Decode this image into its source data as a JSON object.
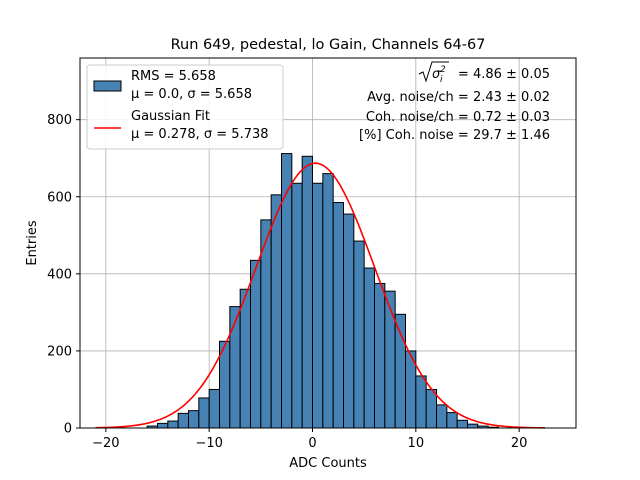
{
  "chart_data": {
    "type": "bar",
    "title": "Run 649, pedestal, lo Gain, Channels 64-67",
    "xlabel": "ADC Counts",
    "ylabel": "Entries",
    "xlim": [
      -22.5,
      25.5
    ],
    "ylim": [
      0,
      960
    ],
    "xticks": [
      -20,
      -10,
      0,
      10,
      20
    ],
    "xtick_labels": [
      "−20",
      "−10",
      "0",
      "10",
      "20"
    ],
    "yticks": [
      0,
      200,
      400,
      600,
      800
    ],
    "ytick_labels": [
      "0",
      "200",
      "400",
      "600",
      "800"
    ],
    "grid": true,
    "legend_position": "top-left",
    "histogram": {
      "bin_width": 1,
      "bin_left_edges": [
        -16,
        -15,
        -14,
        -13,
        -12,
        -11,
        -10,
        -9,
        -8,
        -7,
        -6,
        -5,
        -4,
        -3,
        -2,
        -1,
        0,
        1,
        2,
        3,
        4,
        5,
        6,
        7,
        8,
        9,
        10,
        11,
        12,
        13,
        14,
        15,
        16,
        17
      ],
      "values": [
        5,
        12,
        18,
        38,
        45,
        78,
        100,
        225,
        315,
        360,
        435,
        540,
        605,
        712,
        635,
        705,
        635,
        660,
        585,
        555,
        485,
        415,
        375,
        355,
        295,
        200,
        135,
        100,
        60,
        40,
        20,
        10,
        5,
        2
      ],
      "color": "#4682b4",
      "edge_color": "#000000",
      "legend_label": "RMS = 5.658",
      "legend_sublabel": "μ = 0.0, σ = 5.658"
    },
    "fit": {
      "type": "gaussian",
      "amplitude": 687,
      "mu": 0.278,
      "sigma": 5.738,
      "x_range": [
        -21,
        22.5
      ],
      "color": "#ff0000",
      "legend_label": "Gaussian Fit",
      "legend_sublabel": "μ = 0.278, σ = 5.738"
    },
    "annotations": [
      {
        "text": "= 4.86 ± 0.05",
        "prefix": "sqrt_sigma_i2"
      },
      {
        "text": "Avg. noise/ch = 2.43 ± 0.02"
      },
      {
        "text": "Coh. noise/ch = 0.72 ± 0.03"
      },
      {
        "text": "[%] Coh. noise = 29.7 ± 1.46"
      }
    ]
  }
}
